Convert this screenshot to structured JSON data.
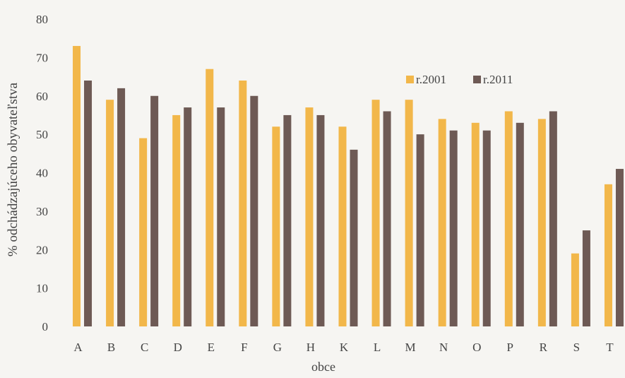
{
  "chart_data": {
    "type": "bar",
    "title": "",
    "xlabel": "obce",
    "ylabel": "% odchádzajúceho obyvateľstva",
    "ylim": [
      0,
      80
    ],
    "yticks": [
      0,
      10,
      20,
      30,
      40,
      50,
      60,
      70,
      80
    ],
    "grid": false,
    "legend_position": "top-right",
    "categories": [
      "A",
      "B",
      "C",
      "D",
      "E",
      "F",
      "G",
      "H",
      "K",
      "L",
      "M",
      "N",
      "O",
      "P",
      "R",
      "S",
      "T"
    ],
    "series": [
      {
        "name": "r.2001",
        "color": "#f2b74a",
        "values": [
          73,
          59,
          49,
          55,
          67,
          64,
          52,
          57,
          52,
          59,
          59,
          54,
          53,
          56,
          54,
          19,
          37
        ]
      },
      {
        "name": "r.2011",
        "color": "#6e5a55",
        "values": [
          64,
          62,
          60,
          57,
          57,
          60,
          55,
          55,
          46,
          56,
          50,
          51,
          51,
          53,
          56,
          25,
          41
        ]
      }
    ]
  }
}
